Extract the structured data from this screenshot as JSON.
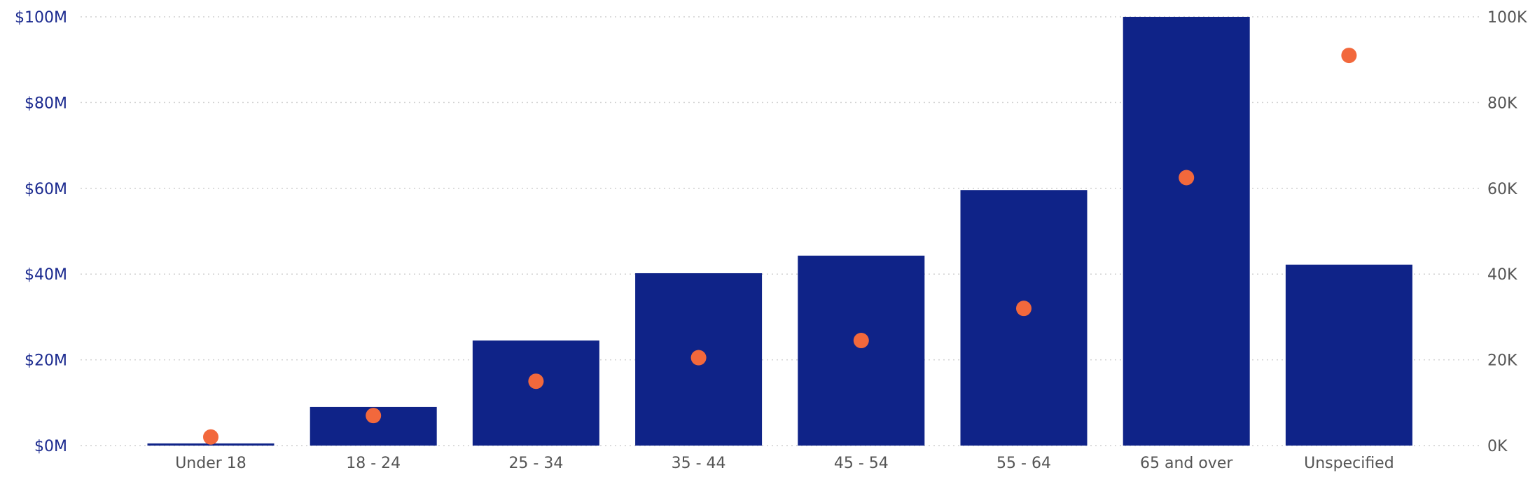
{
  "chart_data": {
    "type": "bar",
    "categories": [
      "Under 18",
      "18 - 24",
      "25 - 34",
      "35 - 44",
      "45 - 54",
      "55 - 64",
      "65 and over",
      "Unspecified"
    ],
    "series": [
      {
        "axis": "left",
        "mark": "bar",
        "color": "#0f2388",
        "values": [
          0.5,
          9.0,
          24.5,
          40.2,
          44.3,
          59.6,
          100.0,
          42.2
        ]
      },
      {
        "axis": "right",
        "mark": "point",
        "color": "#f2683c",
        "values": [
          2000,
          7000,
          15000,
          20500,
          24500,
          32000,
          62500,
          91000
        ]
      }
    ],
    "y_left": {
      "ylim": [
        0,
        100
      ],
      "ticks": [
        0,
        20,
        40,
        60,
        80,
        100
      ],
      "tick_labels": [
        "$0M",
        "$20M",
        "$40M",
        "$60M",
        "$80M",
        "$100M"
      ],
      "color": "#1b2a8f"
    },
    "y_right": {
      "ylim": [
        0,
        100000
      ],
      "ticks": [
        0,
        20000,
        40000,
        60000,
        80000,
        100000
      ],
      "tick_labels": [
        "0K",
        "20K",
        "40K",
        "60K",
        "80K",
        "100K"
      ],
      "color": "#555555"
    },
    "x_tick_color": "#555555",
    "grid": true,
    "grid_style": "dotted",
    "grid_color": "#cfcfcf",
    "title": "",
    "xlabel": "",
    "ylabel": ""
  }
}
